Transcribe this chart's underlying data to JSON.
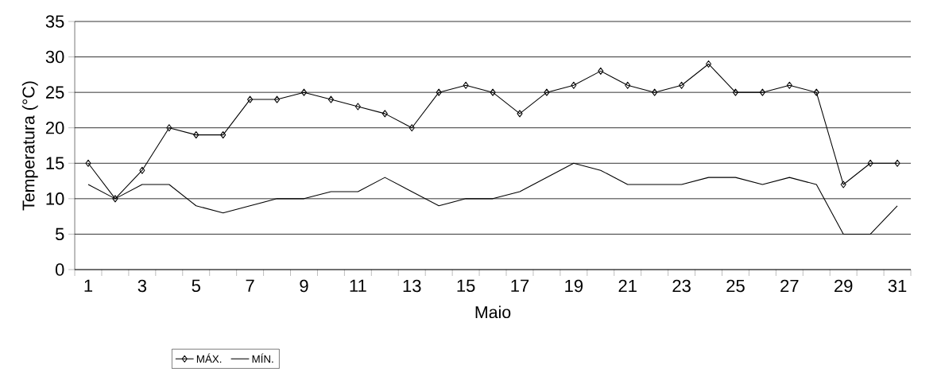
{
  "chart_data": {
    "type": "line",
    "xlabel": "Maio",
    "ylabel": "Temperatura (°C)",
    "categories": [
      "1",
      null,
      "3",
      null,
      "5",
      null,
      "7",
      null,
      "9",
      null,
      "11",
      null,
      "13",
      null,
      "15",
      null,
      "17",
      null,
      "19",
      null,
      "21",
      null,
      "23",
      null,
      "25",
      null,
      "27",
      null,
      "29",
      null,
      "31"
    ],
    "series": [
      {
        "name": "MÁX.",
        "color": "#000000",
        "marker": "diamond",
        "values": [
          15,
          10,
          14,
          20,
          19,
          19,
          24,
          24,
          25,
          24,
          23,
          22,
          20,
          25,
          26,
          25,
          22,
          25,
          26,
          28,
          26,
          25,
          26,
          29,
          25,
          25,
          26,
          25,
          12,
          15,
          15
        ]
      },
      {
        "name": "MÍN.",
        "color": "#000000",
        "marker": "none",
        "values": [
          12,
          10,
          12,
          12,
          9,
          8,
          9,
          10,
          10,
          11,
          11,
          13,
          11,
          9,
          10,
          10,
          11,
          13,
          15,
          14,
          12,
          12,
          12,
          13,
          13,
          12,
          13,
          12,
          5,
          5,
          9
        ]
      }
    ],
    "ylim": [
      0,
      35
    ],
    "yticks": [
      0,
      5,
      10,
      15,
      20,
      25,
      30,
      35
    ],
    "grid": "y",
    "legend": "bottom left",
    "line_style": "solid"
  }
}
